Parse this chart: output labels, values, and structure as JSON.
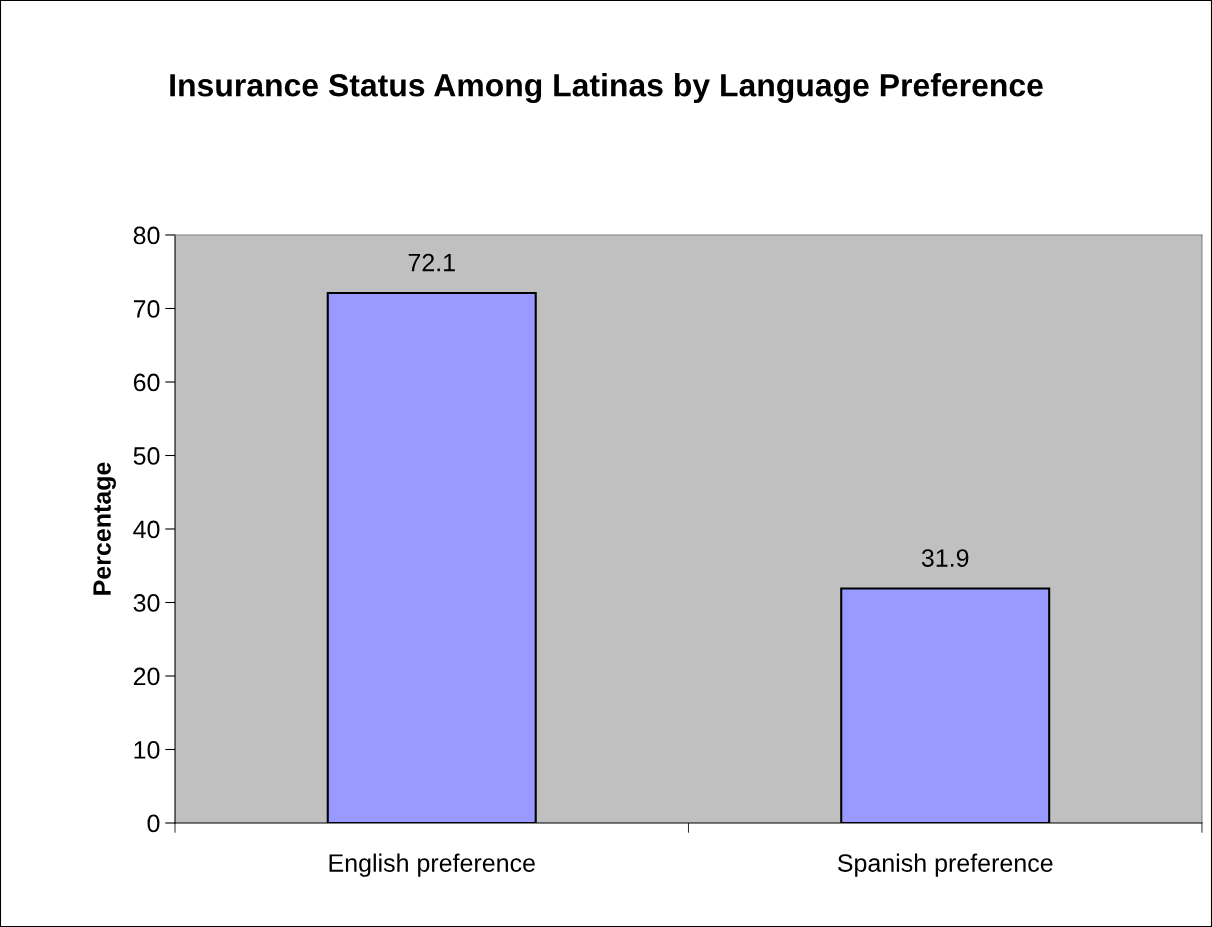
{
  "chart_data": {
    "type": "bar",
    "title": "Insurance Status Among Latinas by Language Preference",
    "ylabel": "Percentage",
    "categories": [
      "English preference",
      "Spanish preference"
    ],
    "values": [
      72.1,
      31.9
    ],
    "color": "#9999ff",
    "ylim": [
      0,
      80
    ],
    "yticks": [
      0,
      10,
      20,
      30,
      40,
      50,
      60,
      70,
      80
    ],
    "data_labels": true,
    "grid": false,
    "legend": false
  }
}
